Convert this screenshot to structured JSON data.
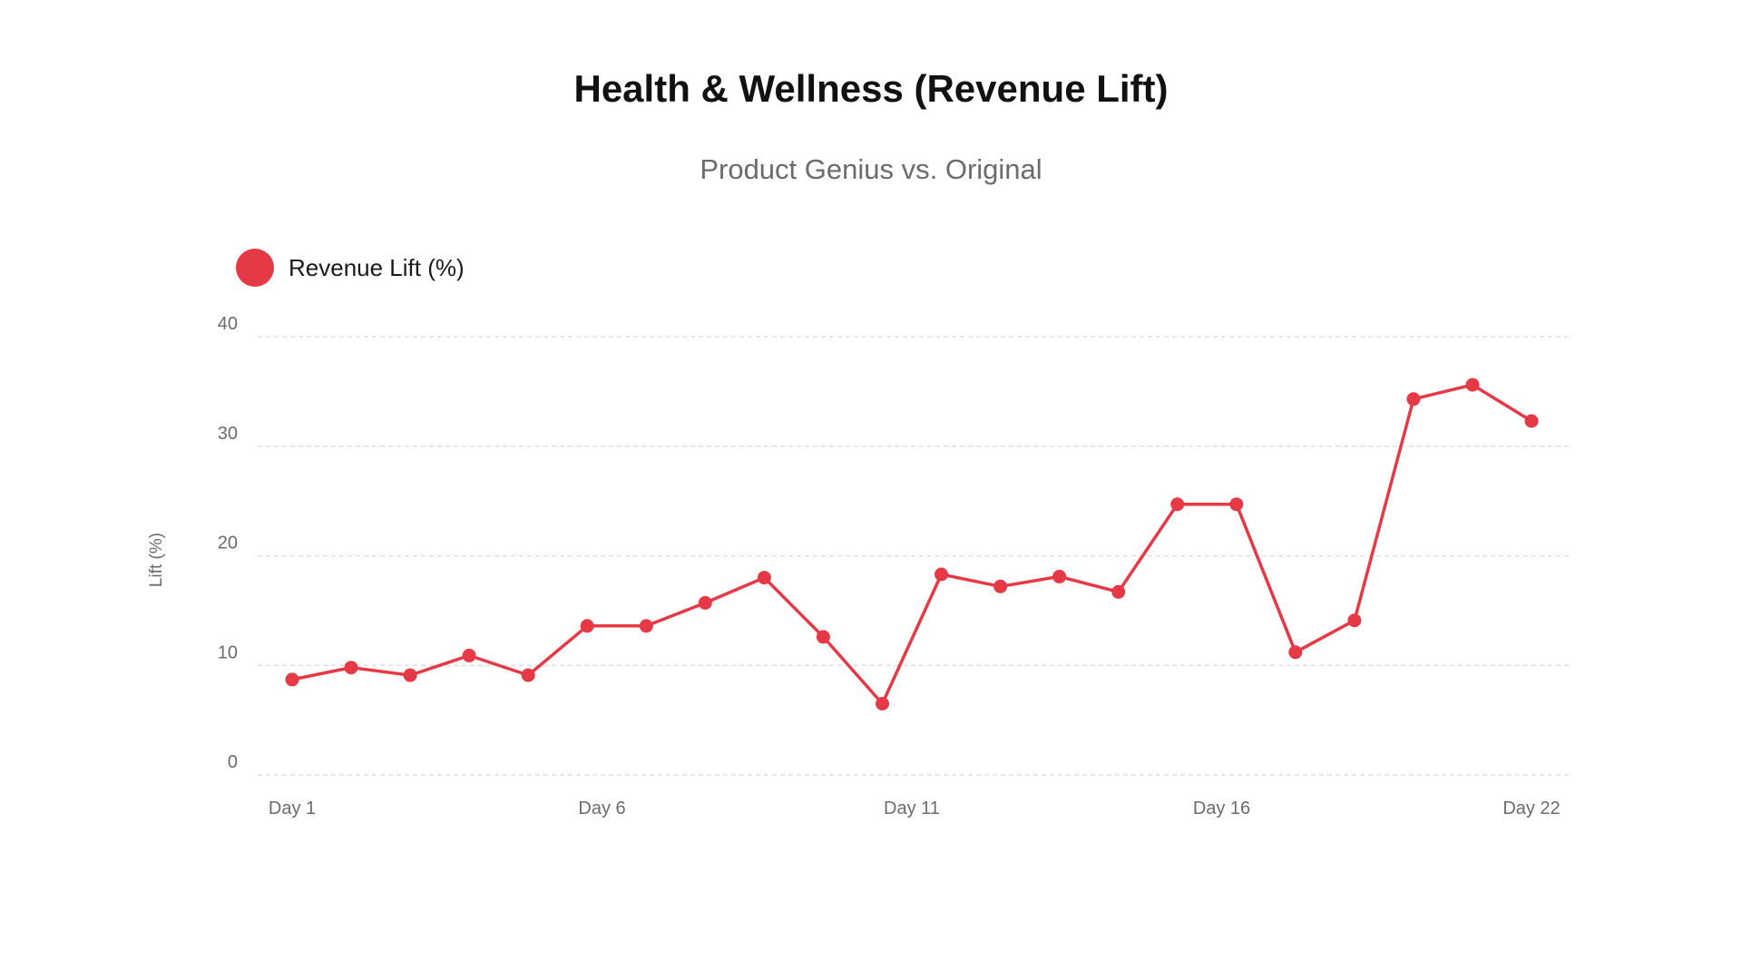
{
  "chart_data": {
    "type": "line",
    "title": "Health & Wellness (Revenue Lift)",
    "subtitle": "Product Genius vs. Original",
    "xlabel": "",
    "ylabel": "Lift (%)",
    "ylim": [
      0,
      40
    ],
    "yticks": [
      "0",
      "10",
      "20",
      "30",
      "40"
    ],
    "x": [
      "Day 1",
      "Day 2",
      "Day 3",
      "Day 4",
      "Day 5",
      "Day 6",
      "Day 7",
      "Day 8",
      "Day 9",
      "Day 10",
      "Day 11",
      "Day 12",
      "Day 13",
      "Day 14",
      "Day 15",
      "Day 16",
      "Day 17",
      "Day 18",
      "Day 19",
      "Day 20",
      "Day 21",
      "Day 22"
    ],
    "xticks_shown": [
      "Day 1",
      "Day 6",
      "Day 11",
      "Day 16",
      "Day 22"
    ],
    "grid": true,
    "legend_position": "top-left",
    "series": [
      {
        "name": "Revenue Lift (%)",
        "color": "#e63946",
        "values": [
          8.7,
          9.8,
          9.1,
          10.9,
          9.1,
          13.6,
          13.6,
          15.7,
          18.0,
          12.6,
          6.5,
          18.3,
          17.2,
          18.1,
          16.7,
          24.7,
          24.7,
          11.2,
          14.1,
          34.3,
          35.6,
          32.3
        ]
      }
    ]
  }
}
